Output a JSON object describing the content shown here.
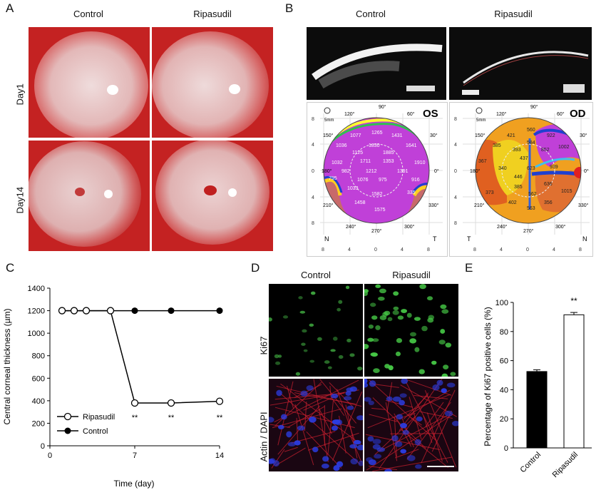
{
  "panels": {
    "A": {
      "label": "A",
      "col_headers": [
        "Control",
        "Ripasudil"
      ],
      "row_labels": [
        "Day1",
        "Day14"
      ]
    },
    "B": {
      "label": "B",
      "col_headers": [
        "Control",
        "Ripasudil"
      ],
      "map_os": {
        "eye": "OS",
        "scale_icon": "5mm",
        "angle_labels": [
          "90°",
          "120°",
          "60°",
          "150°",
          "30°",
          "180°",
          "0°",
          "210°",
          "330°",
          "240°",
          "300°",
          "270°"
        ],
        "values": [
          "1265",
          "1077",
          "1431",
          "1036",
          "1830",
          "1641",
          "1125",
          "1885",
          "1032",
          "1910",
          "1711",
          "1353",
          "982",
          "1212",
          "1391",
          "795",
          "1076",
          "975",
          "916",
          "1033",
          "1582",
          "1458",
          "1575",
          "335"
        ],
        "nasal_temporal": [
          "N",
          "T"
        ],
        "y_ticks": [
          "8",
          "4",
          "0",
          "4",
          "8"
        ],
        "x_ticks": [
          "8",
          "4",
          "0",
          "4",
          "8"
        ]
      },
      "map_od": {
        "eye": "OD",
        "scale_icon": "5mm",
        "angle_labels": [
          "90°",
          "120°",
          "60°",
          "150°",
          "30°",
          "180°",
          "0°",
          "210°",
          "330°",
          "240°",
          "300°",
          "270°"
        ],
        "values": [
          "560",
          "421",
          "922",
          "584",
          "385",
          "393",
          "852",
          "1002",
          "367",
          "437",
          "340",
          "623",
          "939",
          "446",
          "385",
          "373",
          "562",
          "636",
          "1015",
          "402",
          "563",
          "356"
        ],
        "nasal_temporal": [
          "T",
          "N"
        ],
        "y_ticks": [
          "8",
          "4",
          "0",
          "4",
          "8"
        ],
        "x_ticks": [
          "8",
          "4",
          "0",
          "4",
          "8"
        ]
      }
    },
    "C": {
      "label": "C",
      "ylabel": "Central corneal thickness (µm)",
      "xlabel": "Time (day)",
      "yticks": [
        "0",
        "200",
        "400",
        "600",
        "800",
        "1000",
        "1200",
        "1400"
      ],
      "xticks": [
        "0",
        "7",
        "14"
      ],
      "legend": [
        "Ripasudil",
        "Control"
      ],
      "sig": [
        "**",
        "**",
        "**"
      ]
    },
    "D": {
      "label": "D",
      "col_headers": [
        "Control",
        "Ripasudil"
      ],
      "row_labels": [
        "Ki67",
        "Actin / DAPI"
      ]
    },
    "E": {
      "label": "E",
      "ylabel": "Percentage of Ki67 positive cells (%)",
      "yticks": [
        "0",
        "20",
        "40",
        "60",
        "80",
        "100"
      ],
      "sig": "**"
    }
  },
  "chart_data": [
    {
      "type": "line",
      "panel": "C",
      "xlabel": "Time (day)",
      "ylabel": "Central corneal thickness (µm)",
      "xlim": [
        0,
        14
      ],
      "ylim": [
        0,
        1400
      ],
      "series": [
        {
          "name": "Ripasudil",
          "marker": "open-circle",
          "x": [
            1,
            2,
            3,
            5,
            7,
            10,
            14
          ],
          "y": [
            1200,
            1200,
            1200,
            1200,
            380,
            380,
            395
          ],
          "err": [
            0,
            0,
            0,
            0,
            15,
            15,
            15
          ]
        },
        {
          "name": "Control",
          "marker": "filled-circle",
          "x": [
            1,
            2,
            3,
            5,
            7,
            10,
            14
          ],
          "y": [
            1200,
            1200,
            1200,
            1200,
            1200,
            1200,
            1200
          ]
        }
      ],
      "annotations": [
        {
          "x": 7,
          "text": "**"
        },
        {
          "x": 10,
          "text": "**"
        },
        {
          "x": 14,
          "text": "**"
        }
      ],
      "legend_position": "bottom-left"
    },
    {
      "type": "bar",
      "panel": "E",
      "ylabel": "Percentage of Ki67 positive cells (%)",
      "categories": [
        "Control",
        "Ripasudil"
      ],
      "values": [
        52.5,
        91.5
      ],
      "errors": [
        1.2,
        1.6
      ],
      "colors": [
        "#000000",
        "#ffffff"
      ],
      "ylim": [
        0,
        100
      ],
      "annotations": [
        {
          "category": "Ripasudil",
          "text": "**"
        }
      ]
    }
  ]
}
